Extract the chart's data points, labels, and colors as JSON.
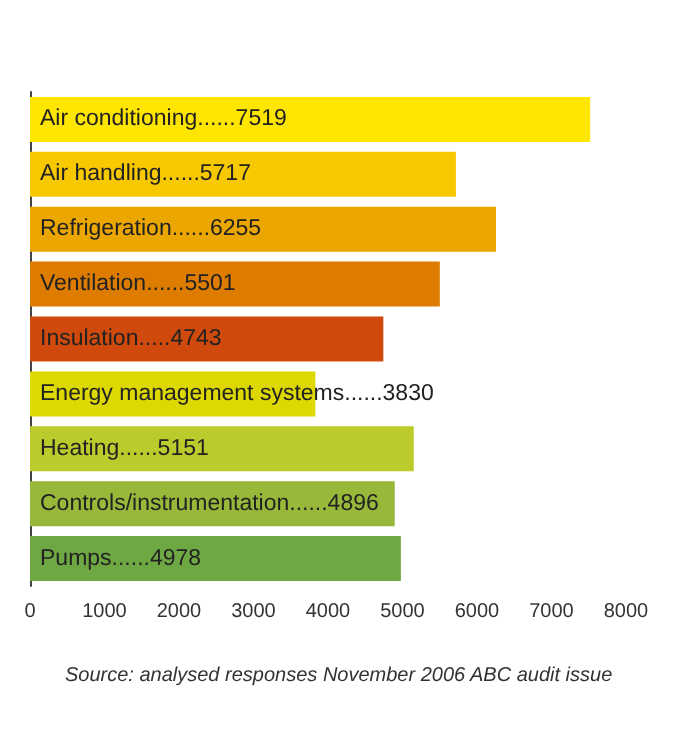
{
  "chart_data": {
    "type": "bar",
    "orientation": "horizontal",
    "categories": [
      "Air conditioning......",
      "Air handling......",
      "Refrigeration......",
      "Ventilation......",
      "Insulation.....",
      "Energy management systems......",
      "Heating......",
      "Controls/instrumentation......",
      "Pumps......"
    ],
    "tick_labels": "x",
    "data_labels": true,
    "values": [
      7519,
      5717,
      6255,
      5501,
      4743,
      3830,
      5151,
      4896,
      4978
    ],
    "colors": [
      "#ffe600",
      "#f8c800",
      "#eba600",
      "#de7c00",
      "#cf4a0c",
      "#dcd800",
      "#bccb2c",
      "#98b83a",
      "#6da842"
    ],
    "xlim": [
      0,
      8000
    ],
    "xticks": [
      0,
      1000,
      2000,
      3000,
      4000,
      5000,
      6000,
      7000,
      8000
    ],
    "grid": false,
    "annotations": [
      "Source: analysed responses November 2006 ABC audit issue"
    ]
  }
}
